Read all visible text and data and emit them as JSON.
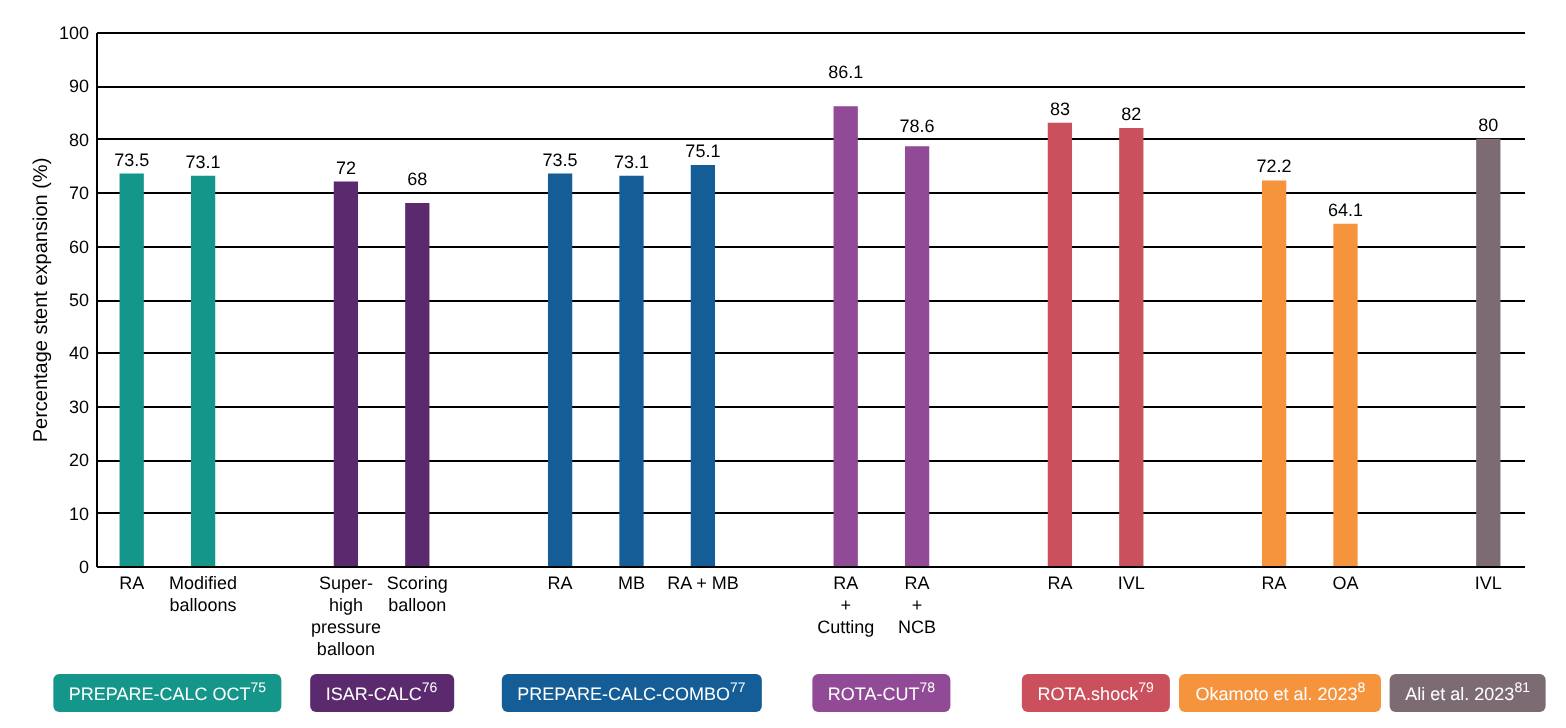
{
  "chart_data": {
    "type": "bar",
    "ylabel": "Percentage stent expansion (%)",
    "categories": [
      "RA",
      "Modified\nballoons",
      null,
      "Super-\nhigh\npressure\nballoon",
      "Scoring\nballoon",
      null,
      "RA",
      "MB",
      "RA + MB",
      null,
      "RA\n+\nCutting",
      "RA\n+\nNCB",
      null,
      "RA",
      "IVL",
      null,
      "RA",
      "OA",
      null,
      "IVL"
    ],
    "series": [
      {
        "name": "PREPARE-CALC OCT$^{75}$",
        "color": "#15968a",
        "values": [
          73.5,
          73.1,
          null,
          null,
          null,
          null,
          null,
          null,
          null,
          null,
          null,
          null,
          null,
          null,
          null,
          null,
          null,
          null,
          null,
          null
        ]
      },
      {
        "name": "ISAR-CALC$^{76}$",
        "color": "#5b2a6e",
        "values": [
          null,
          null,
          null,
          72,
          68,
          null,
          null,
          null,
          null,
          null,
          null,
          null,
          null,
          null,
          null,
          null,
          null,
          null,
          null,
          null
        ]
      },
      {
        "name": "PREPARE-CALC-COMBO$^{77}$",
        "color": "#155d96",
        "values": [
          null,
          null,
          null,
          null,
          null,
          null,
          73.5,
          73.1,
          75.1,
          null,
          null,
          null,
          null,
          null,
          null,
          null,
          null,
          null,
          null,
          null
        ]
      },
      {
        "name": "ROTA-CUT$^{78}$",
        "color": "#914a95",
        "values": [
          null,
          null,
          null,
          null,
          null,
          null,
          null,
          null,
          null,
          null,
          86.1,
          78.6,
          null,
          null,
          null,
          null,
          null,
          null,
          null,
          null
        ]
      },
      {
        "name": "ROTA.shock$^{79}$",
        "color": "#c9505c",
        "values": [
          null,
          null,
          null,
          null,
          null,
          null,
          null,
          null,
          null,
          null,
          null,
          null,
          null,
          83,
          82,
          null,
          null,
          null,
          null,
          null
        ]
      },
      {
        "name": "Okamoto et al. 2023$^{8}$",
        "color": "#f5943c",
        "values": [
          null,
          null,
          null,
          null,
          null,
          null,
          null,
          null,
          null,
          null,
          null,
          null,
          null,
          null,
          null,
          null,
          72.2,
          64.1,
          null,
          null
        ]
      },
      {
        "name": "Ali et al. 2023$^{81}$",
        "color": "#7d6b74",
        "values": [
          null,
          null,
          null,
          null,
          null,
          null,
          null,
          null,
          null,
          null,
          null,
          null,
          null,
          null,
          null,
          null,
          null,
          null,
          null,
          80
        ]
      }
    ],
    "ylim": [
      0,
      100
    ],
    "yticks": [
      0,
      10,
      20,
      30,
      40,
      50,
      60,
      70,
      80,
      90,
      100
    ],
    "grid": "y",
    "data_labels": true,
    "legend": "bottom"
  }
}
